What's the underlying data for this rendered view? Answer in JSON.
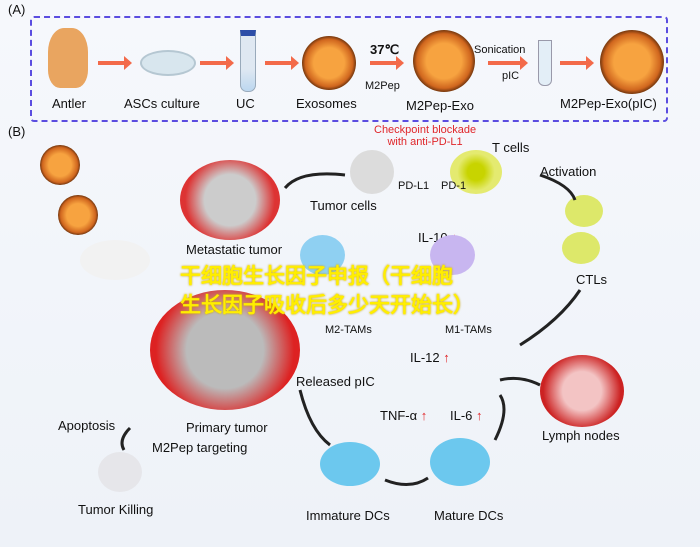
{
  "panel_a": {
    "label": "(A)",
    "steps": [
      "Antler",
      "ASCs culture",
      "UC",
      "Exosomes",
      "M2Pep-Exo",
      "M2Pep-Exo(pIC)"
    ],
    "temp": "37℃",
    "m2pep": "M2Pep",
    "sonication": "Sonication",
    "pic": "pIC"
  },
  "panel_b": {
    "label": "(B)",
    "checkpoint": "Checkpoint blockade\nwith anti-PD-L1",
    "t_cells": "T cells",
    "pd_l1": "PD-L1",
    "pd_1": "PD-1",
    "tumor_cells": "Tumor cells",
    "metastatic_tumor": "Metastatic tumor",
    "activation": "Activation",
    "il10": "IL-10",
    "m2_tams": "M2-TAMs",
    "m1_tams": "M1-TAMs",
    "ctls": "CTLs",
    "il12": "IL-12",
    "released_pic": "Released pIC",
    "tnf": "TNF-α",
    "il6": "IL-6",
    "primary_tumor": "Primary tumor",
    "m2pep_targeting": "M2Pep targeting",
    "apoptosis": "Apoptosis",
    "tumor_killing": "Tumor Killing",
    "immature_dcs": "Immature DCs",
    "mature_dcs": "Mature DCs",
    "lymph_nodes": "Lymph nodes",
    "up_arrow": "↑",
    "down_arrow": "↓"
  },
  "overlay_text": {
    "line1": "干细胞生长因子申报（干细胞",
    "line2": "生长因子吸收后多少天开始长）"
  },
  "colors": {
    "box_border": "#5b4de0",
    "arrow": "#f36a4a",
    "checkpoint": "#e0262a",
    "overlay": "#ffee00"
  }
}
